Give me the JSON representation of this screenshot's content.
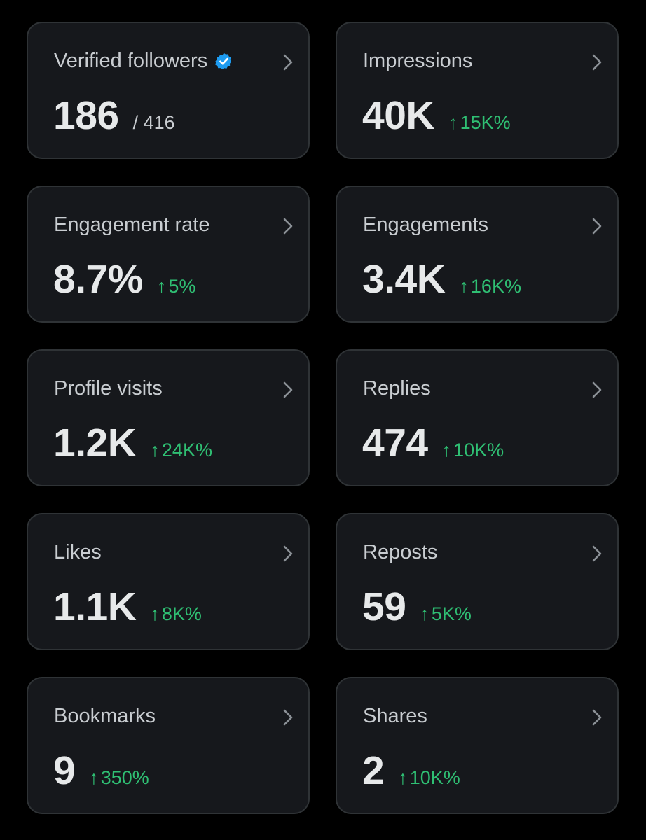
{
  "colors": {
    "background": "#000000",
    "card_bg": "#16181c",
    "card_border": "#2f3336",
    "label": "#c9cdd1",
    "value": "#e7e9ea",
    "trend_up": "#2fbf73",
    "verified": "#1d9bf0"
  },
  "cards": [
    {
      "title": "Verified followers",
      "value": "186",
      "secondary": "/ 416",
      "trend_arrow": "",
      "trend": ""
    },
    {
      "title": "Impressions",
      "value": "40K",
      "secondary": "",
      "trend_arrow": "↑",
      "trend": "15K%"
    },
    {
      "title": "Engagement rate",
      "value": "8.7%",
      "secondary": "",
      "trend_arrow": "↑",
      "trend": "5%"
    },
    {
      "title": "Engagements",
      "value": "3.4K",
      "secondary": "",
      "trend_arrow": "↑",
      "trend": "16K%"
    },
    {
      "title": "Profile visits",
      "value": "1.2K",
      "secondary": "",
      "trend_arrow": "↑",
      "trend": "24K%"
    },
    {
      "title": "Replies",
      "value": "474",
      "secondary": "",
      "trend_arrow": "↑",
      "trend": "10K%"
    },
    {
      "title": "Likes",
      "value": "1.1K",
      "secondary": "",
      "trend_arrow": "↑",
      "trend": "8K%"
    },
    {
      "title": "Reposts",
      "value": "59",
      "secondary": "",
      "trend_arrow": "↑",
      "trend": "5K%"
    },
    {
      "title": "Bookmarks",
      "value": "9",
      "secondary": "",
      "trend_arrow": "↑",
      "trend": "350%"
    },
    {
      "title": "Shares",
      "value": "2",
      "secondary": "",
      "trend_arrow": "↑",
      "trend": "10K%"
    }
  ]
}
